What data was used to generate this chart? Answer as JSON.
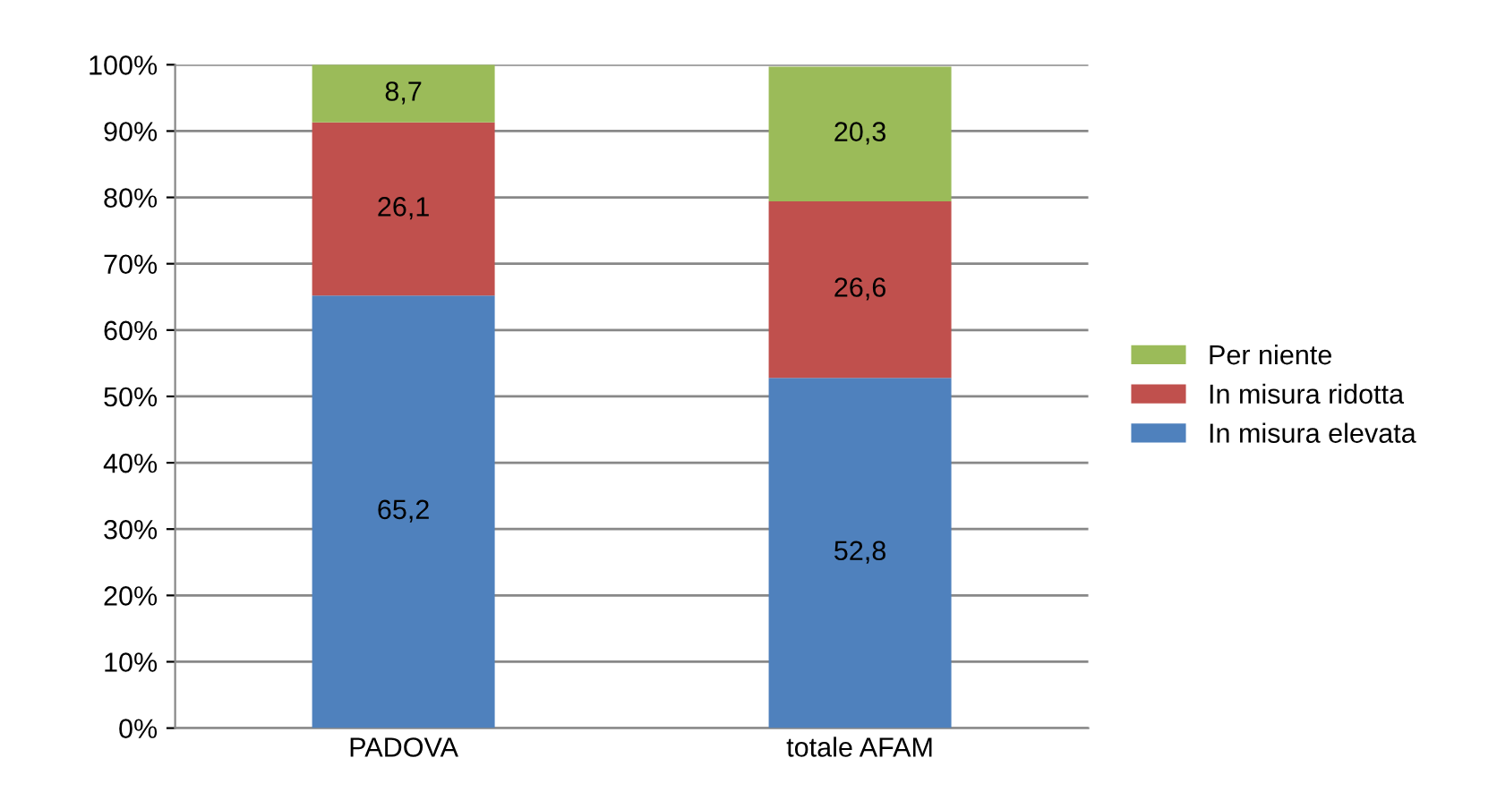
{
  "chart_data": {
    "type": "bar",
    "stacked": true,
    "categories": [
      "PADOVA",
      "totale AFAM"
    ],
    "series": [
      {
        "name": "In misura elevata",
        "color": "#4f81bd",
        "values": [
          65.2,
          52.8
        ],
        "value_labels": [
          "65,2",
          "52,8"
        ]
      },
      {
        "name": "In misura ridotta",
        "color": "#c0504d",
        "values": [
          26.1,
          26.6
        ],
        "value_labels": [
          "26,1",
          "26,6"
        ]
      },
      {
        "name": "Per niente",
        "color": "#9bbb59",
        "values": [
          8.7,
          20.3
        ],
        "value_labels": [
          "8,7",
          "20,3"
        ]
      }
    ],
    "ylim": [
      0,
      100
    ],
    "yticks": [
      {
        "value": 0,
        "label": "0%"
      },
      {
        "value": 10,
        "label": "10%"
      },
      {
        "value": 20,
        "label": "20%"
      },
      {
        "value": 30,
        "label": "30%"
      },
      {
        "value": 40,
        "label": "40%"
      },
      {
        "value": 50,
        "label": "50%"
      },
      {
        "value": 60,
        "label": "60%"
      },
      {
        "value": 70,
        "label": "70%"
      },
      {
        "value": 80,
        "label": "80%"
      },
      {
        "value": 90,
        "label": "90%"
      },
      {
        "value": 100,
        "label": "100%"
      }
    ],
    "grid": "y",
    "legend": "right"
  }
}
